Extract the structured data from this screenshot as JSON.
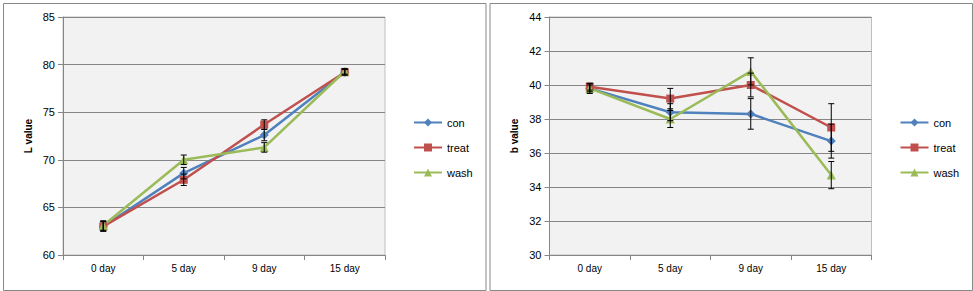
{
  "chart_data": [
    {
      "type": "line",
      "y_label": "L value",
      "categories": [
        "0 day",
        "5 day",
        "9 day",
        "15 day"
      ],
      "ylim": [
        60,
        85
      ],
      "yticks": [
        60,
        65,
        70,
        75,
        80,
        85
      ],
      "grid": true,
      "legend": "right",
      "series": [
        {
          "name": "con",
          "color": "#4f81bd",
          "marker": "diamond",
          "values": [
            63.0,
            68.6,
            72.6,
            79.2
          ],
          "errors": [
            0.5,
            0.6,
            0.6,
            0.3
          ]
        },
        {
          "name": "treat",
          "color": "#c0504d",
          "marker": "square",
          "values": [
            63.0,
            67.9,
            73.7,
            79.2
          ],
          "errors": [
            0.5,
            0.6,
            0.5,
            0.3
          ]
        },
        {
          "name": "wash",
          "color": "#9bbb59",
          "marker": "triangle",
          "values": [
            63.1,
            70.0,
            71.3,
            79.3
          ],
          "errors": [
            0.5,
            0.5,
            0.5,
            0.3
          ]
        }
      ]
    },
    {
      "type": "line",
      "y_label": "b value",
      "categories": [
        "0 day",
        "5 day",
        "9 day",
        "15 day"
      ],
      "ylim": [
        30,
        44
      ],
      "yticks": [
        30,
        32,
        34,
        36,
        38,
        40,
        42,
        44
      ],
      "grid": true,
      "legend": "right",
      "series": [
        {
          "name": "con",
          "color": "#4f81bd",
          "marker": "diamond",
          "values": [
            39.8,
            38.4,
            38.3,
            36.7
          ],
          "errors": [
            0.3,
            0.5,
            0.9,
            1.0
          ]
        },
        {
          "name": "treat",
          "color": "#c0504d",
          "marker": "square",
          "values": [
            39.9,
            39.2,
            40.0,
            37.5
          ],
          "errors": [
            0.2,
            0.6,
            0.7,
            1.4
          ]
        },
        {
          "name": "wash",
          "color": "#9bbb59",
          "marker": "triangle",
          "values": [
            39.8,
            38.0,
            40.8,
            34.7
          ],
          "errors": [
            0.2,
            0.5,
            0.8,
            0.8
          ]
        }
      ]
    }
  ]
}
